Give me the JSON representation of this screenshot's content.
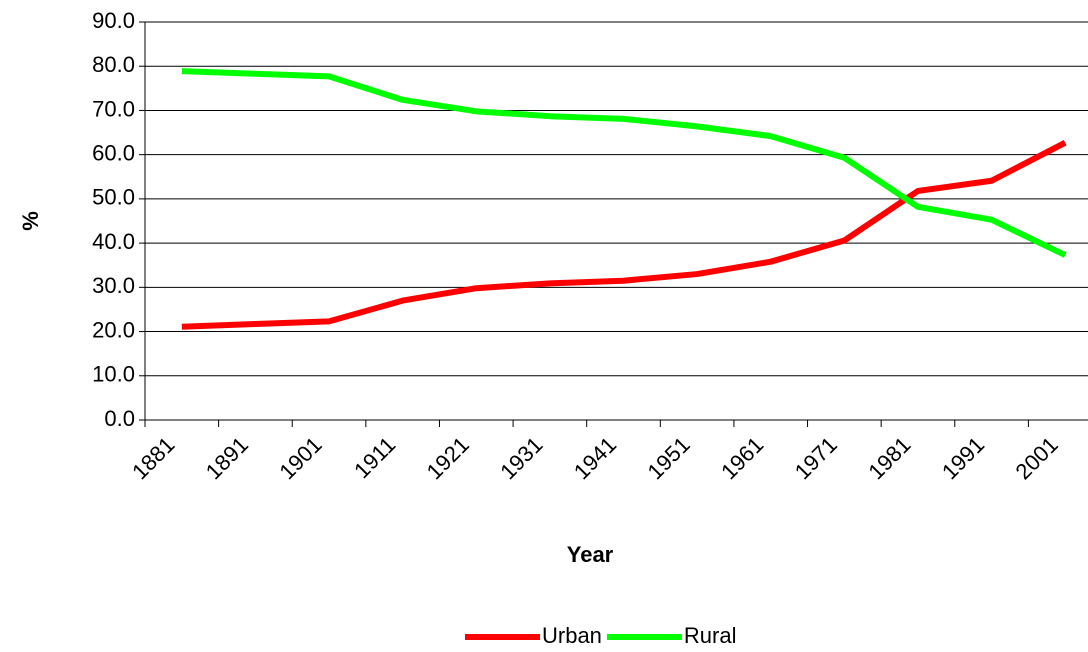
{
  "chart_data": {
    "type": "line",
    "x_label": "Year",
    "y_label": "%",
    "categories": [
      "1881",
      "1891",
      "1901",
      "1911",
      "1921",
      "1931",
      "1941",
      "1951",
      "1961",
      "1971",
      "1981",
      "1991",
      "2001"
    ],
    "series": [
      {
        "name": "Urban",
        "color": "#ff0000",
        "values": [
          21.1,
          21.7,
          22.3,
          27.0,
          29.8,
          30.9,
          31.5,
          33.0,
          35.8,
          40.6,
          51.8,
          54.1,
          62.7
        ]
      },
      {
        "name": "Rural",
        "color": "#00ff00",
        "values": [
          78.9,
          78.3,
          77.7,
          72.4,
          69.8,
          68.7,
          68.1,
          66.4,
          64.2,
          59.3,
          48.2,
          45.3,
          37.3
        ]
      }
    ],
    "ylim": [
      0,
      90
    ],
    "yticks": [
      {
        "value": 0,
        "label": "0.0"
      },
      {
        "value": 10,
        "label": "10.0"
      },
      {
        "value": 20,
        "label": "20.0"
      },
      {
        "value": 30,
        "label": "30.0"
      },
      {
        "value": 40,
        "label": "40.0"
      },
      {
        "value": 50,
        "label": "50.0"
      },
      {
        "value": 60,
        "label": "60.0"
      },
      {
        "value": 70,
        "label": "70.0"
      },
      {
        "value": 80,
        "label": "80.0"
      },
      {
        "value": 90,
        "label": "90.0"
      }
    ],
    "grid": true,
    "legend": "bottom"
  }
}
